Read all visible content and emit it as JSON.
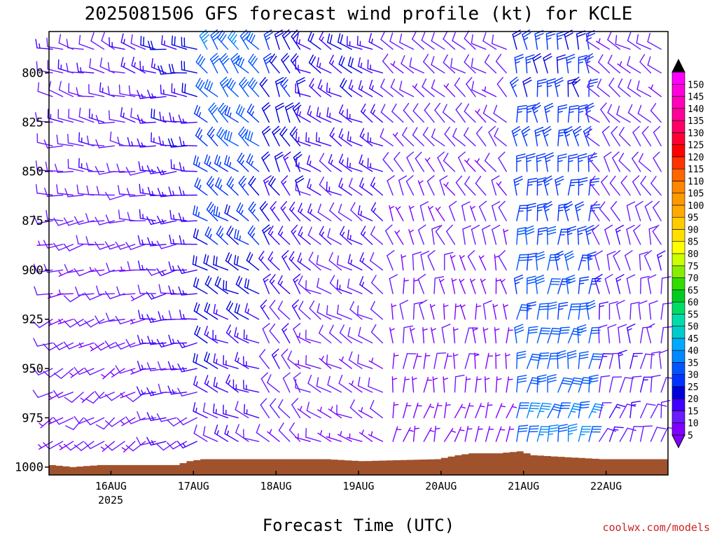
{
  "chart_data": {
    "type": "wind_barb_time_height",
    "title": "2025081506 GFS forecast wind profile (kt) for KCLE",
    "xlabel": "Forecast Time (UTC)",
    "credit": "coolwx.com/models",
    "y_axis": {
      "quantity": "pressure (hPa)",
      "inverted": true,
      "range": [
        779,
        1004
      ],
      "ticks": [
        800,
        825,
        850,
        875,
        900,
        925,
        950,
        975,
        1000
      ]
    },
    "x_axis": {
      "range_hours": [
        0,
        180
      ],
      "year_label": "2025",
      "ticks": [
        {
          "label": "16AUG",
          "hour": 18
        },
        {
          "label": "17AUG",
          "hour": 42
        },
        {
          "label": "18AUG",
          "hour": 66
        },
        {
          "label": "19AUG",
          "hour": 90
        },
        {
          "label": "20AUG",
          "hour": 114
        },
        {
          "label": "21AUG",
          "hour": 138
        },
        {
          "label": "22AUG",
          "hour": 162
        }
      ]
    },
    "levels": [
      788,
      800,
      812,
      825,
      837,
      850,
      862,
      875,
      887,
      900,
      912,
      925,
      937,
      950,
      962,
      975,
      987
    ],
    "regimes": [
      {
        "from_hour": 0,
        "to_hour": 30,
        "dir_top": 290,
        "dir_bottom": 230,
        "spd_top": 12,
        "spd_bottom": 7
      },
      {
        "from_hour": 30,
        "to_hour": 44,
        "dir_top": 280,
        "dir_bottom": 250,
        "spd_top": 17,
        "spd_bottom": 12
      },
      {
        "from_hour": 44,
        "to_hour": 62,
        "dir_top": 320,
        "dir_bottom": 290,
        "spd_top": 32,
        "spd_bottom": 12
      },
      {
        "from_hour": 62,
        "to_hour": 76,
        "dir_top": 335,
        "dir_bottom": 320,
        "spd_top": 22,
        "spd_bottom": 9
      },
      {
        "from_hour": 76,
        "to_hour": 100,
        "dir_top": 300,
        "dir_bottom": 300,
        "spd_top": 17,
        "spd_bottom": 7
      },
      {
        "from_hour": 100,
        "to_hour": 136,
        "dir_top": 300,
        "dir_bottom": 20,
        "spd_top": 10,
        "spd_bottom": 5
      },
      {
        "from_hour": 136,
        "to_hour": 160,
        "dir_top": 345,
        "dir_bottom": 15,
        "spd_top": 22,
        "spd_bottom": 32
      },
      {
        "from_hour": 160,
        "to_hour": 180,
        "dir_top": 300,
        "dir_bottom": 20,
        "spd_top": 9,
        "spd_bottom": 12
      }
    ],
    "terrain_surface_hpa": [
      {
        "hour": 0,
        "p": 999
      },
      {
        "hour": 6,
        "p": 1000
      },
      {
        "hour": 14,
        "p": 999
      },
      {
        "hour": 36,
        "p": 999
      },
      {
        "hour": 40,
        "p": 997
      },
      {
        "hour": 44,
        "p": 996
      },
      {
        "hour": 80,
        "p": 996
      },
      {
        "hour": 90,
        "p": 997
      },
      {
        "hour": 112,
        "p": 996
      },
      {
        "hour": 118,
        "p": 994
      },
      {
        "hour": 122,
        "p": 993
      },
      {
        "hour": 130,
        "p": 993
      },
      {
        "hour": 136,
        "p": 992
      },
      {
        "hour": 140,
        "p": 994
      },
      {
        "hour": 150,
        "p": 995
      },
      {
        "hour": 160,
        "p": 996
      },
      {
        "hour": 180,
        "p": 996
      }
    ],
    "colorbar": {
      "labels": [
        "5",
        "10",
        "15",
        "20",
        "25",
        "30",
        "35",
        "40",
        "45",
        "50",
        "55",
        "60",
        "65",
        "70",
        "75",
        "80",
        "85",
        "90",
        "95",
        "100",
        "105",
        "110",
        "115",
        "120",
        "125",
        "130",
        "135",
        "140",
        "145",
        "150"
      ],
      "colors": [
        "#7f00ff",
        "#6a1cff",
        "#3f00ff",
        "#0000dd",
        "#0033ff",
        "#0055ff",
        "#0088ff",
        "#00aaff",
        "#00cccc",
        "#00ddaa",
        "#00dd66",
        "#00cc22",
        "#33dd00",
        "#88ee00",
        "#ccff00",
        "#ffff00",
        "#ffe000",
        "#ffcc00",
        "#ffaa00",
        "#ff9900",
        "#ff8800",
        "#ff6600",
        "#ff3300",
        "#ff0000",
        "#ff0033",
        "#ff0066",
        "#ff0099",
        "#ff00bb",
        "#ff00dd",
        "#ff00ff"
      ],
      "top_triangle_color": "#000000",
      "bottom_triangle_color": "#7f00ff"
    },
    "terrain_color": "#a0522d"
  }
}
